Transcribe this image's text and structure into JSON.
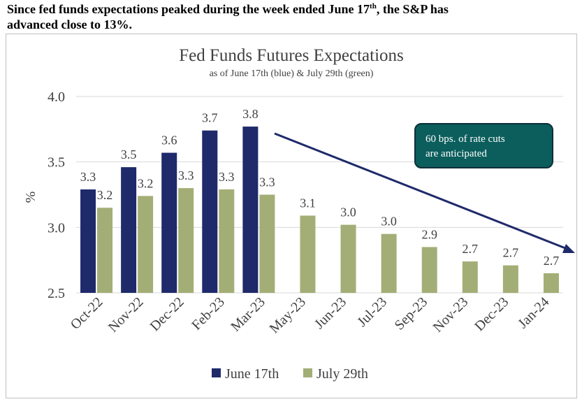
{
  "headline": {
    "line1_before": "Since fed funds expectations peaked during the week ended June 17",
    "line1_sup": "th",
    "line1_after": ", the S&P has",
    "line2": "advanced close to 13%."
  },
  "callout": {
    "line1": "60 bps. of rate cuts",
    "line2": "are anticipated",
    "fill_color": "#0b5e5c",
    "border_color": "#0b2f3a"
  },
  "colors": {
    "june_series": "#1f2a6b",
    "july_series": "#a3ae76",
    "arrow": "#1f2a6b",
    "grid": "#d9d9d9"
  },
  "chart_data": {
    "type": "bar",
    "title": "Fed Funds Futures Expectations",
    "subtitle": "as of June 17th (blue) & July 29th (green)",
    "ylabel": "%",
    "xlabel": "",
    "ylim": [
      2.5,
      4.0
    ],
    "yticks": [
      "2.5",
      "3.0",
      "3.5",
      "4.0"
    ],
    "grid": true,
    "legend_position": "bottom",
    "categories": [
      "Oct-22",
      "Nov-22",
      "Dec-22",
      "Feb-23",
      "Mar-23",
      "May-23",
      "Jun-23",
      "Jul-23",
      "Sep-23",
      "Nov-23",
      "Dec-23",
      "Jan-24"
    ],
    "series": [
      {
        "name": "June 17th",
        "values": [
          3.29,
          3.46,
          3.57,
          3.74,
          3.77,
          null,
          null,
          null,
          null,
          null,
          null,
          null
        ],
        "labels": [
          "3.3",
          "3.5",
          "3.6",
          "3.7",
          "3.8",
          "",
          "",
          "",
          "",
          "",
          "",
          ""
        ]
      },
      {
        "name": "July 29th",
        "values": [
          3.15,
          3.24,
          3.3,
          3.29,
          3.25,
          3.09,
          3.02,
          2.95,
          2.85,
          2.74,
          2.71,
          2.65
        ],
        "labels": [
          "3.2",
          "3.2",
          "3.3",
          "3.3",
          "3.3",
          "3.1",
          "3.0",
          "3.0",
          "2.9",
          "2.7",
          "2.7",
          "2.7"
        ]
      }
    ]
  }
}
